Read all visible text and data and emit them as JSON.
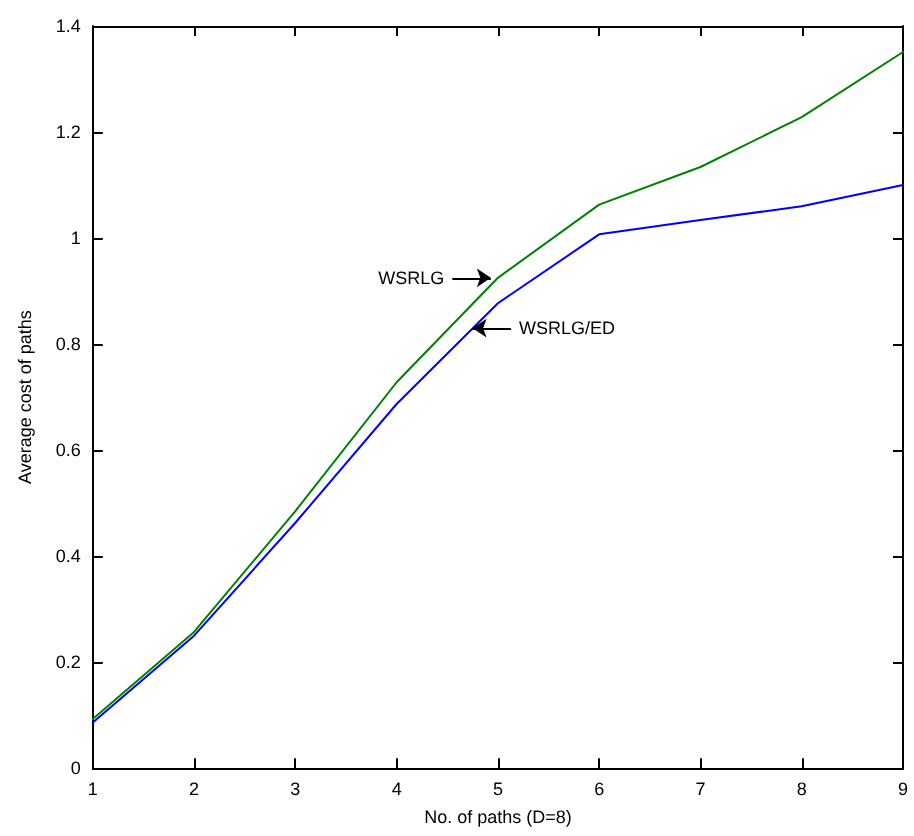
{
  "chart_data": {
    "type": "line",
    "xlabel": "No. of paths (D=8)",
    "ylabel": "Average cost of paths",
    "x": [
      1,
      2,
      3,
      4,
      5,
      6,
      7,
      8,
      9
    ],
    "series": [
      {
        "color": "#008000",
        "values": [
          0.093,
          0.257,
          0.485,
          0.728,
          0.925,
          1.063,
          1.134,
          1.228,
          1.351
        ]
      },
      {
        "color": "#0000ff",
        "values": [
          0.086,
          0.25,
          0.463,
          0.687,
          0.877,
          1.007,
          1.034,
          1.06,
          1.1
        ]
      }
    ],
    "annotations": [
      {
        "text": "WSRLG",
        "x": 4.93,
        "y": 0.925
      },
      {
        "text": "WSRLG/ED",
        "x": 4.75,
        "y": 0.83
      }
    ],
    "xlim": [
      1,
      9
    ],
    "xticks": [
      1,
      2,
      3,
      4,
      5,
      6,
      7,
      8,
      9
    ],
    "ylim": [
      0,
      1.4
    ],
    "yticks": [
      0,
      0.2,
      0.4,
      0.6,
      0.8,
      1,
      1.2,
      1.4
    ],
    "grid": false
  }
}
